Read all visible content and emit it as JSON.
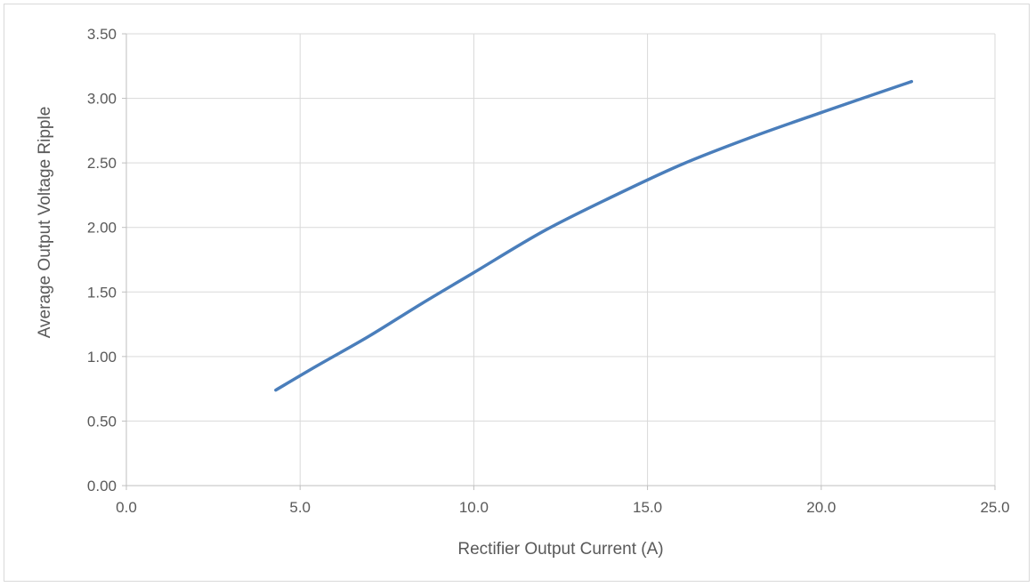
{
  "chart_data": {
    "type": "line",
    "title": "",
    "xlabel": "Rectifier Output Current (A)",
    "ylabel": "Average Output Voltage Ripple",
    "xlim": [
      0,
      25
    ],
    "ylim": [
      0,
      3.5
    ],
    "x_ticks": [
      "0.0",
      "5.0",
      "10.0",
      "15.0",
      "20.0",
      "25.0"
    ],
    "y_ticks": [
      "0.00",
      "0.50",
      "1.00",
      "1.50",
      "2.00",
      "2.50",
      "3.00",
      "3.50"
    ],
    "grid": true,
    "legend": "none",
    "series_color": "#4a7ebb",
    "series": [
      {
        "x": [
          4.3,
          5.5,
          7.0,
          8.5,
          10.0,
          12.0,
          14.0,
          16.0,
          18.0,
          20.0,
          22.6
        ],
        "y": [
          0.74,
          0.93,
          1.16,
          1.41,
          1.65,
          1.97,
          2.24,
          2.49,
          2.7,
          2.89,
          3.13
        ]
      }
    ]
  }
}
